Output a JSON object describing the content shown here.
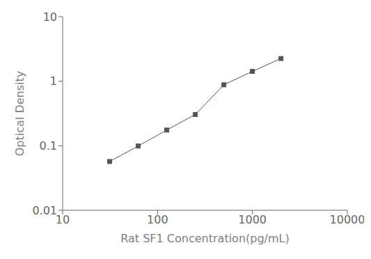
{
  "chart_data": {
    "type": "line",
    "xlabel": "Rat SF1 Concentration(pg/mL)",
    "ylabel": "Optical Density",
    "x": [
      31.25,
      62.5,
      125,
      250,
      500,
      1000,
      2000
    ],
    "values": [
      0.057,
      0.099,
      0.175,
      0.305,
      0.88,
      1.42,
      2.25
    ],
    "log": true,
    "xlim": [
      10,
      10000
    ],
    "ylim": [
      0.01,
      10
    ],
    "xticks": [
      10,
      100,
      1000,
      10000
    ],
    "yticks": [
      0.01,
      0.1,
      1,
      10
    ],
    "color": "#555555",
    "marker": "square",
    "line_style": "solid",
    "grid": false
  }
}
